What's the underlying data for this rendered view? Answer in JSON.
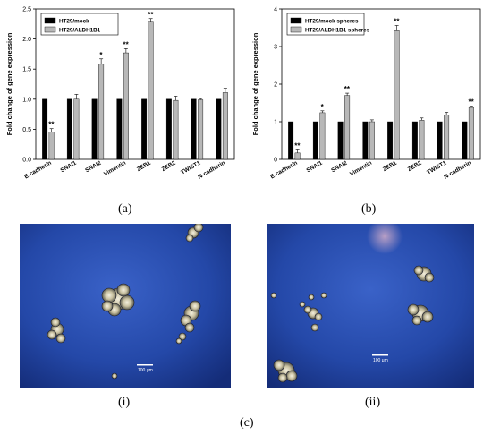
{
  "chart_data": [
    {
      "type": "bar",
      "panel": "(a)",
      "ylabel": "Fold change of gene expression",
      "ylim": [
        0,
        2.5
      ],
      "yticks": [
        "0.0",
        "0.5",
        "1.0",
        "1.5",
        "2.0",
        "2.5"
      ],
      "legend_position": "top-left",
      "categories": [
        "E-cadherin",
        "SNAI1",
        "SNAI2",
        "Vimentin",
        "ZEB1",
        "ZEB2",
        "TWIST1",
        "N-cadherin"
      ],
      "series": [
        {
          "name": "HT29/mock",
          "color": "#000000",
          "values": [
            1,
            1,
            1,
            1,
            1,
            1,
            1,
            1
          ],
          "errors": [
            0,
            0,
            0,
            0,
            0,
            0,
            0,
            0
          ]
        },
        {
          "name": "HT29/ALDH1B1",
          "color": "#b8b8b8",
          "values": [
            0.45,
            1.0,
            1.58,
            1.77,
            2.28,
            0.98,
            0.99,
            1.11
          ],
          "errors": [
            0.06,
            0.08,
            0.09,
            0.07,
            0.06,
            0.07,
            0.02,
            0.07
          ]
        }
      ],
      "significance": [
        "**",
        "",
        "*",
        "**",
        "**",
        "",
        "",
        ""
      ]
    },
    {
      "type": "bar",
      "panel": "(b)",
      "ylabel": "Fold change of gene expression",
      "ylim": [
        0,
        4
      ],
      "yticks": [
        "0",
        "1",
        "2",
        "3",
        "4"
      ],
      "legend_position": "top-left",
      "categories": [
        "E-cadherin",
        "SNAI1",
        "SNAI2",
        "Vimentin",
        "ZEB1",
        "ZEB2",
        "TWIST1",
        "N-cadherin"
      ],
      "series": [
        {
          "name": "HT29/mock spheres",
          "color": "#000000",
          "values": [
            1,
            1,
            1,
            1,
            1,
            1,
            1,
            1
          ],
          "errors": [
            0,
            0,
            0,
            0,
            0,
            0,
            0,
            0
          ]
        },
        {
          "name": "HT29/ALDH1B1 spheres",
          "color": "#b8b8b8",
          "values": [
            0.17,
            1.24,
            1.7,
            1.0,
            3.42,
            1.04,
            1.18,
            1.38
          ],
          "errors": [
            0.08,
            0.05,
            0.06,
            0.05,
            0.14,
            0.06,
            0.07,
            0.04
          ]
        }
      ],
      "significance": [
        "**",
        "*",
        "**",
        "",
        "**",
        "",
        "",
        "**"
      ]
    }
  ],
  "labels": {
    "a": "(a)",
    "b": "(b)",
    "c": "(c)",
    "i": "(i)",
    "ii": "(ii)"
  },
  "photos": {
    "i": {
      "scale_text": "100 μm"
    },
    "ii": {
      "scale_text": "100 μm"
    }
  }
}
